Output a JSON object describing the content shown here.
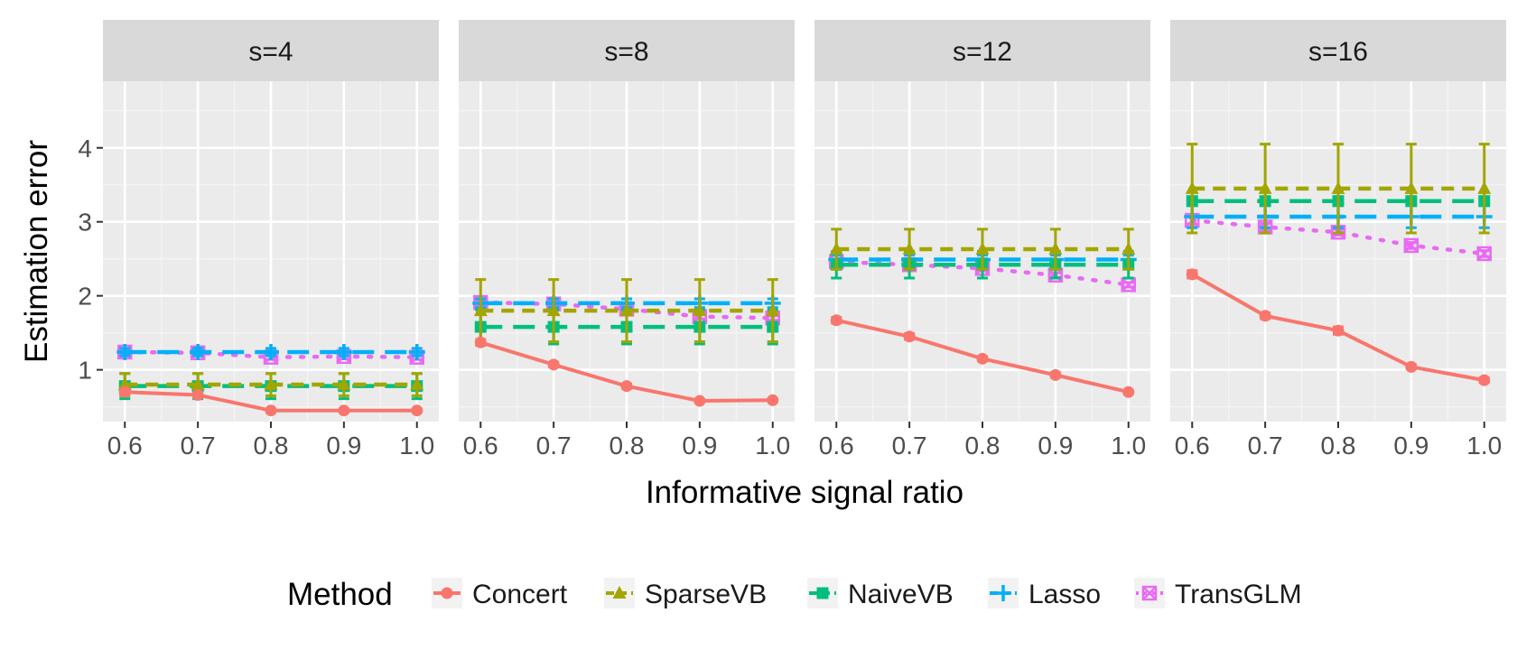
{
  "chart_data": {
    "type": "line",
    "facet_by": "s",
    "xlabel": "Informative signal ratio",
    "ylabel": "Estimation error",
    "x": [
      0.6,
      0.7,
      0.8,
      0.9,
      1.0
    ],
    "x_tick_labels": [
      "0.6",
      "0.7",
      "0.8",
      "0.9",
      "1.0"
    ],
    "xlim": [
      0.57,
      1.03
    ],
    "ylim": [
      0.3,
      4.9
    ],
    "y_ticks": [
      1,
      2,
      3,
      4
    ],
    "y_tick_labels": [
      "1",
      "2",
      "3",
      "4"
    ],
    "grid": true,
    "legend": {
      "title": "Method",
      "position": "bottom",
      "entries": [
        "Concert",
        "SparseVB",
        "NaiveVB",
        "Lasso",
        "TransGLM"
      ]
    },
    "series_styles": [
      {
        "name": "Concert",
        "color": "#F8766D",
        "marker": "circle",
        "line": "solid"
      },
      {
        "name": "SparseVB",
        "color": "#A3A500",
        "marker": "triangle",
        "line": "dashed"
      },
      {
        "name": "NaiveVB",
        "color": "#00BF7D",
        "marker": "square",
        "line": "longdash"
      },
      {
        "name": "Lasso",
        "color": "#00B0F6",
        "marker": "plus",
        "line": "longdash"
      },
      {
        "name": "TransGLM",
        "color": "#E76BF3",
        "marker": "square-cross",
        "line": "dotted"
      }
    ],
    "panels": [
      {
        "label": "s=4",
        "series": [
          {
            "name": "Concert",
            "values": [
              0.7,
              0.66,
              0.45,
              0.45,
              0.45
            ],
            "err": [
              0.04,
              0.03,
              0.02,
              0.02,
              0.02
            ]
          },
          {
            "name": "SparseVB",
            "values": [
              0.8,
              0.8,
              0.8,
              0.8,
              0.8
            ],
            "err": [
              0.15,
              0.15,
              0.15,
              0.15,
              0.15
            ]
          },
          {
            "name": "NaiveVB",
            "values": [
              0.78,
              0.78,
              0.78,
              0.78,
              0.78
            ],
            "err": [
              0.17,
              0.17,
              0.17,
              0.17,
              0.17
            ]
          },
          {
            "name": "Lasso",
            "values": [
              1.24,
              1.24,
              1.24,
              1.24,
              1.24
            ],
            "err": [
              0.05,
              0.05,
              0.05,
              0.05,
              0.05
            ]
          },
          {
            "name": "TransGLM",
            "values": [
              1.24,
              1.23,
              1.17,
              1.18,
              1.17
            ],
            "err": [
              0.03,
              0.03,
              0.03,
              0.03,
              0.03
            ]
          }
        ]
      },
      {
        "label": "s=8",
        "series": [
          {
            "name": "Concert",
            "values": [
              1.37,
              1.07,
              0.78,
              0.58,
              0.59
            ],
            "err": [
              0.04,
              0.03,
              0.03,
              0.02,
              0.02
            ]
          },
          {
            "name": "SparseVB",
            "values": [
              1.8,
              1.8,
              1.8,
              1.8,
              1.8
            ],
            "err": [
              0.42,
              0.42,
              0.42,
              0.42,
              0.42
            ]
          },
          {
            "name": "NaiveVB",
            "values": [
              1.58,
              1.58,
              1.58,
              1.58,
              1.58
            ],
            "err": [
              0.23,
              0.23,
              0.23,
              0.23,
              0.23
            ]
          },
          {
            "name": "Lasso",
            "values": [
              1.9,
              1.9,
              1.9,
              1.9,
              1.9
            ],
            "err": [
              0.06,
              0.06,
              0.06,
              0.06,
              0.06
            ]
          },
          {
            "name": "TransGLM",
            "values": [
              1.91,
              1.89,
              1.82,
              1.72,
              1.7
            ],
            "err": [
              0.03,
              0.03,
              0.03,
              0.03,
              0.03
            ]
          }
        ]
      },
      {
        "label": "s=12",
        "series": [
          {
            "name": "Concert",
            "values": [
              1.67,
              1.45,
              1.15,
              0.93,
              0.7
            ],
            "err": [
              0.04,
              0.04,
              0.03,
              0.03,
              0.02
            ]
          },
          {
            "name": "SparseVB",
            "values": [
              2.63,
              2.63,
              2.63,
              2.63,
              2.63
            ],
            "err": [
              0.27,
              0.27,
              0.27,
              0.27,
              0.27
            ]
          },
          {
            "name": "NaiveVB",
            "values": [
              2.42,
              2.42,
              2.42,
              2.42,
              2.42
            ],
            "err": [
              0.18,
              0.18,
              0.18,
              0.18,
              0.18
            ]
          },
          {
            "name": "Lasso",
            "values": [
              2.49,
              2.49,
              2.49,
              2.49,
              2.49
            ],
            "err": [
              0.06,
              0.06,
              0.06,
              0.06,
              0.06
            ]
          },
          {
            "name": "TransGLM",
            "values": [
              2.46,
              2.42,
              2.37,
              2.28,
              2.15
            ],
            "err": [
              0.03,
              0.03,
              0.03,
              0.03,
              0.03
            ]
          }
        ]
      },
      {
        "label": "s=16",
        "series": [
          {
            "name": "Concert",
            "values": [
              2.29,
              1.73,
              1.53,
              1.04,
              0.86
            ],
            "err": [
              0.05,
              0.04,
              0.05,
              0.03,
              0.03
            ]
          },
          {
            "name": "SparseVB",
            "values": [
              3.45,
              3.45,
              3.45,
              3.45,
              3.45
            ],
            "err": [
              0.6,
              0.6,
              0.6,
              0.6,
              0.6
            ]
          },
          {
            "name": "NaiveVB",
            "values": [
              3.28,
              3.28,
              3.28,
              3.28,
              3.28
            ],
            "err": [
              0.06,
              0.06,
              0.06,
              0.06,
              0.06
            ]
          },
          {
            "name": "Lasso",
            "values": [
              3.07,
              3.07,
              3.07,
              3.07,
              3.07
            ],
            "err": [
              0.15,
              0.15,
              0.15,
              0.15,
              0.15
            ]
          },
          {
            "name": "TransGLM",
            "values": [
              3.02,
              2.93,
              2.86,
              2.68,
              2.57
            ],
            "err": [
              0.05,
              0.05,
              0.04,
              0.04,
              0.04
            ]
          }
        ]
      }
    ]
  }
}
